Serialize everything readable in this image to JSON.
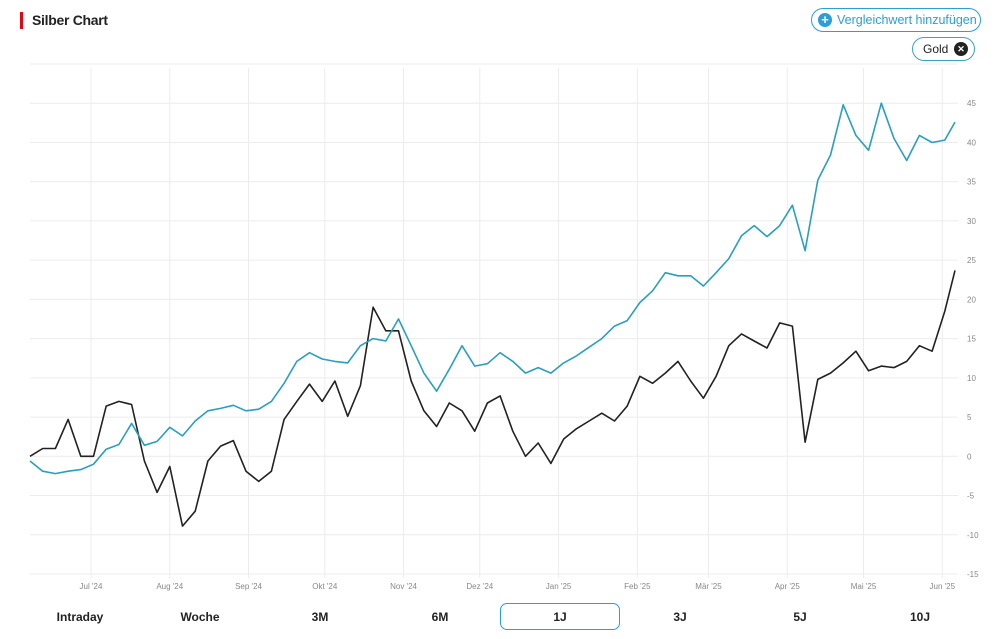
{
  "header": {
    "title": "Silber Chart",
    "accent_color": "#e30613"
  },
  "compare_button": {
    "label": "Vergleichwert hinzufügen",
    "icon": "plus-circle-icon",
    "color": "#2a9fd6"
  },
  "comparison_chips": [
    {
      "label": "Gold",
      "icon": "close-icon",
      "color": "#3aa3bd"
    }
  ],
  "range_tabs": {
    "items": [
      "Intraday",
      "Woche",
      "3M",
      "6M",
      "1J",
      "3J",
      "5J",
      "10J"
    ],
    "active": "1J"
  },
  "chart_data": {
    "type": "line",
    "title": "",
    "xlabel": "",
    "ylabel": "",
    "ylim": [
      -15,
      50
    ],
    "yticks": [
      -15,
      -10,
      -5,
      0,
      5,
      10,
      15,
      20,
      25,
      30,
      35,
      40,
      45
    ],
    "ytick_position": "right",
    "grid": true,
    "xlim": [
      "2024-06-07",
      "2025-06-06"
    ],
    "xticks": [
      {
        "date": "2024-07-01",
        "label": "Jul '24"
      },
      {
        "date": "2024-08-01",
        "label": "Aug '24"
      },
      {
        "date": "2024-09-01",
        "label": "Sep '24"
      },
      {
        "date": "2024-10-01",
        "label": "Okt '24"
      },
      {
        "date": "2024-11-01",
        "label": "Nov '24"
      },
      {
        "date": "2024-12-01",
        "label": "Dez '24"
      },
      {
        "date": "2025-01-01",
        "label": "Jan '25"
      },
      {
        "date": "2025-02-01",
        "label": "Feb '25"
      },
      {
        "date": "2025-03-01",
        "label": "Mär '25"
      },
      {
        "date": "2025-04-01",
        "label": "Apr '25"
      },
      {
        "date": "2025-05-01",
        "label": "Mai '25"
      },
      {
        "date": "2025-06-01",
        "label": "Jun '25"
      }
    ],
    "x": [
      "2024-06-07",
      "2024-06-12",
      "2024-06-17",
      "2024-06-22",
      "2024-06-27",
      "2024-07-02",
      "2024-07-07",
      "2024-07-12",
      "2024-07-17",
      "2024-07-22",
      "2024-07-27",
      "2024-08-01",
      "2024-08-06",
      "2024-08-11",
      "2024-08-16",
      "2024-08-21",
      "2024-08-26",
      "2024-08-31",
      "2024-09-05",
      "2024-09-10",
      "2024-09-15",
      "2024-09-20",
      "2024-09-25",
      "2024-09-30",
      "2024-10-05",
      "2024-10-10",
      "2024-10-15",
      "2024-10-20",
      "2024-10-25",
      "2024-10-30",
      "2024-11-04",
      "2024-11-09",
      "2024-11-14",
      "2024-11-19",
      "2024-11-24",
      "2024-11-29",
      "2024-12-04",
      "2024-12-09",
      "2024-12-14",
      "2024-12-19",
      "2024-12-24",
      "2024-12-29",
      "2025-01-03",
      "2025-01-08",
      "2025-01-13",
      "2025-01-18",
      "2025-01-23",
      "2025-01-28",
      "2025-02-02",
      "2025-02-07",
      "2025-02-12",
      "2025-02-17",
      "2025-02-22",
      "2025-02-27",
      "2025-03-04",
      "2025-03-09",
      "2025-03-14",
      "2025-03-19",
      "2025-03-24",
      "2025-03-29",
      "2025-04-03",
      "2025-04-08",
      "2025-04-13",
      "2025-04-18",
      "2025-04-23",
      "2025-04-28",
      "2025-05-03",
      "2025-05-08",
      "2025-05-13",
      "2025-05-18",
      "2025-05-23",
      "2025-05-28",
      "2025-06-02",
      "2025-06-06"
    ],
    "series": [
      {
        "color": "#222222",
        "values": [
          0,
          1.0,
          1.0,
          4.7,
          0,
          0,
          6.4,
          7.0,
          6.6,
          -0.6,
          -4.6,
          -1.3,
          -8.9,
          -7.0,
          -0.6,
          1.3,
          2.0,
          -1.9,
          -3.2,
          -1.9,
          4.7,
          7.0,
          9.2,
          7.0,
          9.6,
          5.1,
          9.0,
          19.0,
          16.0,
          16.0,
          9.6,
          5.8,
          3.8,
          6.8,
          5.8,
          3.2,
          6.8,
          7.7,
          3.2,
          0,
          1.7,
          -0.9,
          2.2,
          3.5,
          4.5,
          5.5,
          4.5,
          6.4,
          10.2,
          9.3,
          10.6,
          12.1,
          9.6,
          7.4,
          10.2,
          14.1,
          15.6,
          14.7,
          13.8,
          17.0,
          16.6,
          1.8,
          9.8,
          10.6,
          11.9,
          13.4,
          10.9,
          11.5,
          11.3,
          12.1,
          14.1,
          13.4,
          18.5,
          23.7
        ]
      },
      {
        "name": "Gold",
        "color": "#2a9fbd",
        "values": [
          -0.6,
          -1.9,
          -2.2,
          -1.9,
          -1.7,
          -1.0,
          0.9,
          1.5,
          4.2,
          1.4,
          1.9,
          3.7,
          2.6,
          4.5,
          5.8,
          6.1,
          6.5,
          5.8,
          6.0,
          7.0,
          9.3,
          12.1,
          13.2,
          12.4,
          12.1,
          11.9,
          14.1,
          15.0,
          14.7,
          17.5,
          14.1,
          10.6,
          8.3,
          11.1,
          14.1,
          11.5,
          11.8,
          13.2,
          12.1,
          10.6,
          11.3,
          10.6,
          11.9,
          12.8,
          13.9,
          15.0,
          16.6,
          17.3,
          19.6,
          21.1,
          23.4,
          23.0,
          23.0,
          21.7,
          23.4,
          25.2,
          28.1,
          29.4,
          28.0,
          29.4,
          32.0,
          26.2,
          35.2,
          38.4,
          44.8,
          40.9,
          39.0,
          45.0,
          40.5,
          37.7,
          40.9,
          40.0,
          40.3,
          42.6
        ]
      }
    ]
  }
}
